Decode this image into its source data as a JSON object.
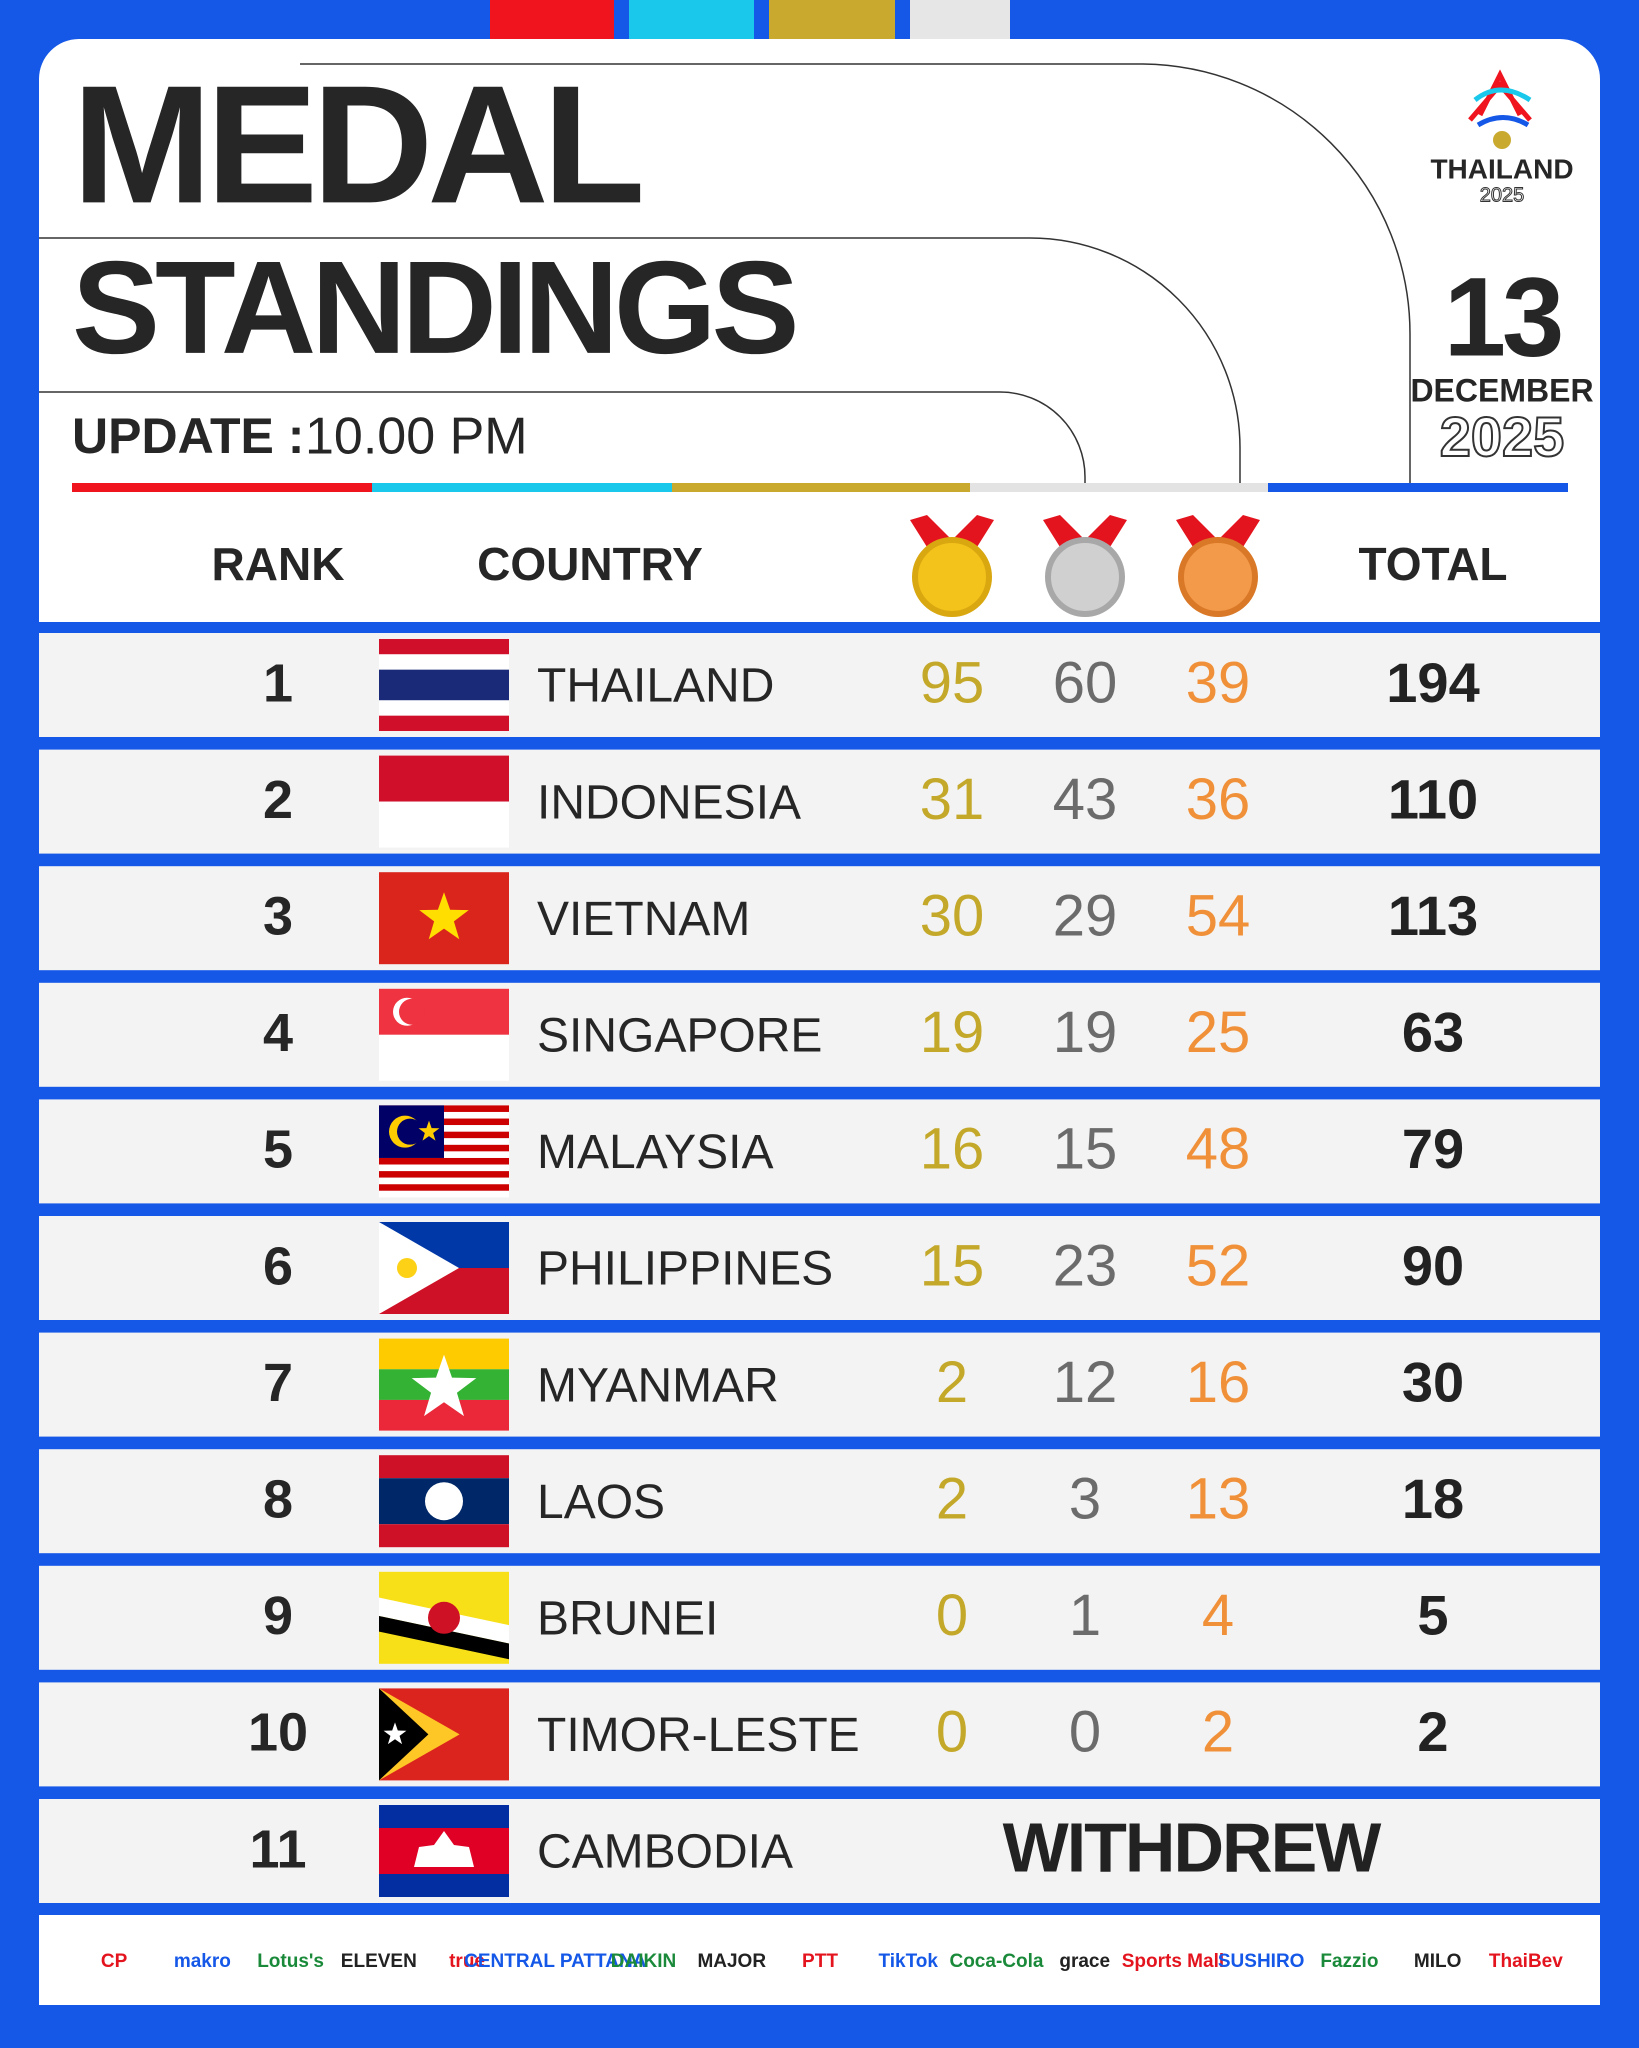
{
  "header": {
    "title_line1": "MEDAL",
    "title_line2": "STANDINGS",
    "update_label": "UPDATE :",
    "update_time": "10.00 PM",
    "logo_name": "THAILAND",
    "logo_year": "2025",
    "date_day": "13",
    "date_month": "DECEMBER",
    "date_year": "2025"
  },
  "table": {
    "columns": {
      "rank": "RANK",
      "country": "COUNTRY",
      "total": "TOTAL"
    },
    "rows": [
      {
        "rank": "1",
        "country": "THAILAND",
        "gold": "95",
        "silver": "60",
        "bronze": "39",
        "total": "194"
      },
      {
        "rank": "2",
        "country": "INDONESIA",
        "gold": "31",
        "silver": "43",
        "bronze": "36",
        "total": "110"
      },
      {
        "rank": "3",
        "country": "VIETNAM",
        "gold": "30",
        "silver": "29",
        "bronze": "54",
        "total": "113"
      },
      {
        "rank": "4",
        "country": "SINGAPORE",
        "gold": "19",
        "silver": "19",
        "bronze": "25",
        "total": "63"
      },
      {
        "rank": "5",
        "country": "MALAYSIA",
        "gold": "16",
        "silver": "15",
        "bronze": "48",
        "total": "79"
      },
      {
        "rank": "6",
        "country": "PHILIPPINES",
        "gold": "15",
        "silver": "23",
        "bronze": "52",
        "total": "90"
      },
      {
        "rank": "7",
        "country": "MYANMAR",
        "gold": "2",
        "silver": "12",
        "bronze": "16",
        "total": "30"
      },
      {
        "rank": "8",
        "country": "LAOS",
        "gold": "2",
        "silver": "3",
        "bronze": "13",
        "total": "18"
      },
      {
        "rank": "9",
        "country": "BRUNEI",
        "gold": "0",
        "silver": "1",
        "bronze": "4",
        "total": "5"
      },
      {
        "rank": "10",
        "country": "TIMOR-LESTE",
        "gold": "0",
        "silver": "0",
        "bronze": "2",
        "total": "2"
      },
      {
        "rank": "11",
        "country": "CAMBODIA",
        "status": "WITHDREW"
      }
    ]
  },
  "sponsors": [
    "CP",
    "makro",
    "Lotus's",
    "ELEVEN",
    "true",
    "CENTRAL PATTANA",
    "DAIKIN",
    "MAJOR",
    "PTT",
    "TikTok",
    "Coca-Cola",
    "grace",
    "Sports Mall",
    "SUSHIRO",
    "Fazzio",
    "MILO",
    "ThaiBev"
  ]
}
